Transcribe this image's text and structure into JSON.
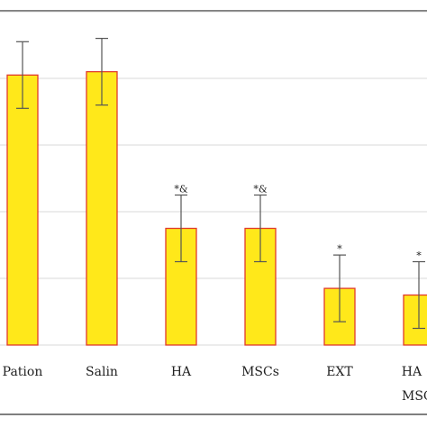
{
  "chart_data": {
    "type": "bar",
    "categories": [
      "Pation",
      "Salin",
      "HA",
      "MSCs",
      "EXT",
      "HA +"
    ],
    "category_continuation": {
      "HA +": "MSC:"
    },
    "values": [
      4.05,
      4.1,
      1.75,
      1.75,
      0.85,
      0.75
    ],
    "errors": [
      0.5,
      0.5,
      0.5,
      0.5,
      0.5,
      0.5
    ],
    "annotations": [
      "",
      "",
      "*&",
      "*&",
      "*",
      "*"
    ],
    "title": "",
    "xlabel": "",
    "ylabel": "",
    "ylim": [
      0,
      5
    ],
    "grid": true,
    "legend": "none",
    "colors": {
      "bar_fill": "#ffe81a",
      "bar_edge": "#e03a2b",
      "error_bar": "#555555",
      "grid": "#d9d9d9",
      "frame": "#555555"
    }
  }
}
